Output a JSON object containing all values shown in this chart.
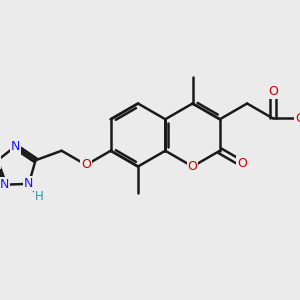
{
  "bg_color": "#ebebeb",
  "bond_color": "#1a1a1a",
  "bond_width": 1.8,
  "N_color": "#1414ff",
  "O_color": "#cc0000",
  "H_color": "#14a0a0",
  "fig_size": [
    3.0,
    3.0
  ],
  "dpi": 100,
  "xlim": [
    0,
    10
  ],
  "ylim": [
    0,
    10
  ]
}
